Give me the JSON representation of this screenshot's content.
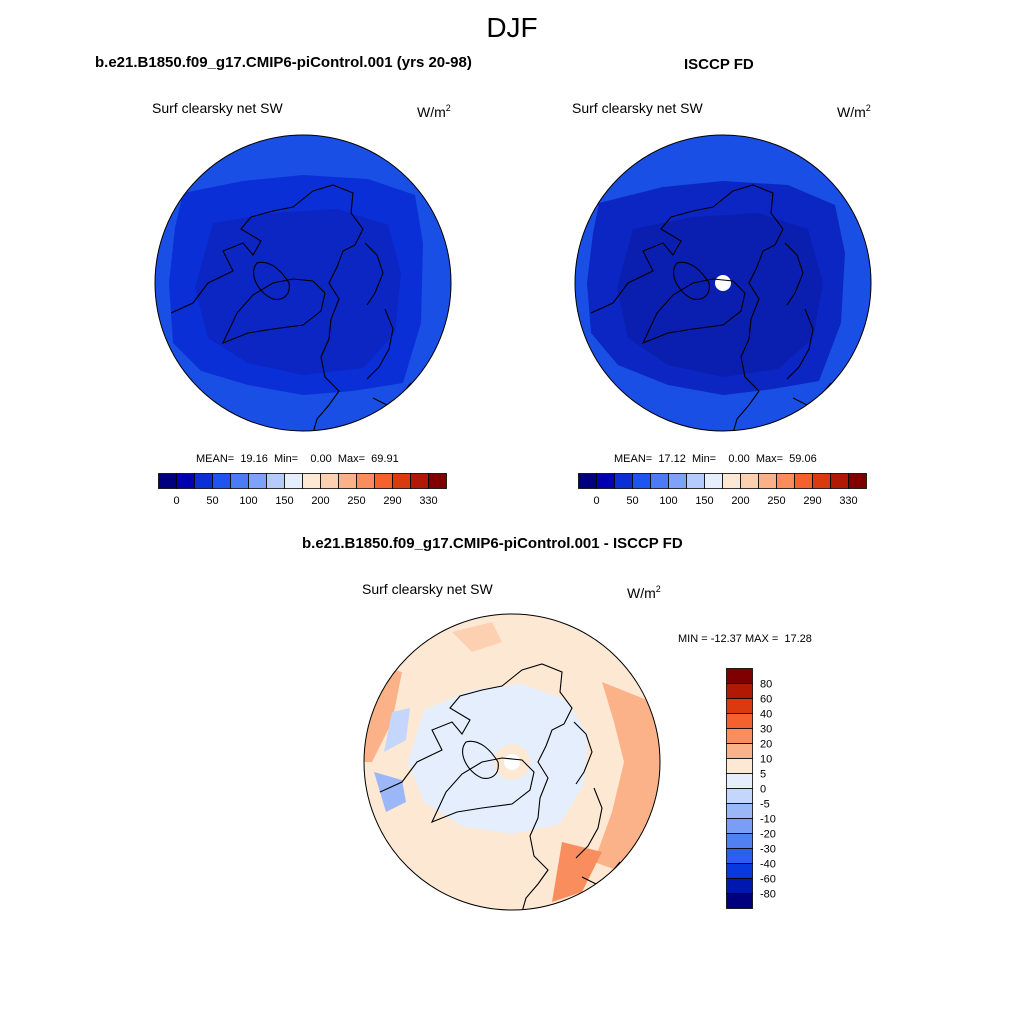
{
  "season": "DJF",
  "panels": [
    {
      "title": "b.e21.B1850.f09_g17.CMIP6-piControl.001 (yrs 20-98)",
      "variable": "Surf clearsky net SW",
      "unit_base": "W/m",
      "unit_exp": "2",
      "stats": "MEAN=  19.16  Min=    0.00  Max=  69.91"
    },
    {
      "title": "ISCCP FD",
      "variable": "Surf clearsky net SW",
      "unit_base": "W/m",
      "unit_exp": "2",
      "stats": "MEAN=  17.12  Min=    0.00  Max=  59.06"
    },
    {
      "title": "b.e21.B1850.f09_g17.CMIP6-piControl.001 - ISCCP FD",
      "variable": "Surf clearsky net SW",
      "unit_base": "W/m",
      "unit_exp": "2",
      "stats": "MIN = -12.37 MAX =  17.28"
    }
  ],
  "colorbar_abs": {
    "colors": [
      "#00007f",
      "#0000b3",
      "#0a2fd6",
      "#1e55f0",
      "#4a7cf5",
      "#7ea2f8",
      "#b5cbfb",
      "#e4eefd",
      "#fde8d4",
      "#fcd0b0",
      "#fbb289",
      "#f98d5e",
      "#f4602e",
      "#d93a10",
      "#b01a05",
      "#7f0000"
    ],
    "labels": [
      "0",
      "50",
      "100",
      "150",
      "200",
      "250",
      "290",
      "330"
    ]
  },
  "colorbar_diff": {
    "colors": [
      "#7f0000",
      "#b01a05",
      "#d93a10",
      "#f4602e",
      "#f98d5e",
      "#fbb289",
      "#fde8d4",
      "#e4eefd",
      "#c4d6fb",
      "#9cb7f8",
      "#7a9ef5",
      "#5080f2",
      "#2a5ff0",
      "#0a38e0",
      "#0018b0",
      "#00007f"
    ],
    "labels": [
      "80",
      "60",
      "40",
      "30",
      "20",
      "10",
      "5",
      "0",
      "-5",
      "-10",
      "-20",
      "-30",
      "-40",
      "-60",
      "-80"
    ]
  }
}
